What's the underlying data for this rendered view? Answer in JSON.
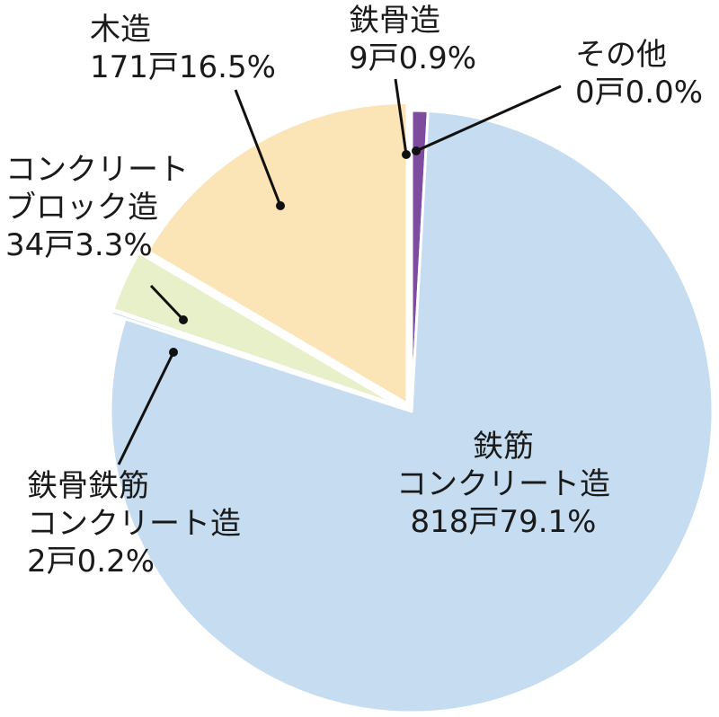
{
  "chart_data": {
    "type": "pie",
    "start_angle_deg": 0,
    "direction": "clockwise",
    "slices": [
      {
        "id": "tekkotsu",
        "lines": [
          "鉄骨造",
          "9戸0.9%"
        ],
        "units": 9,
        "percent": 0.9,
        "color": "#7d4c9e"
      },
      {
        "id": "sonota",
        "lines": [
          "その他",
          "0戸0.0%"
        ],
        "units": 0,
        "percent": 0.0,
        "color": "#7d4c9e"
      },
      {
        "id": "rc",
        "lines": [
          "鉄筋",
          "コンクリート造",
          "818戸79.1%"
        ],
        "units": 818,
        "percent": 79.1,
        "color": "#c5dcf1"
      },
      {
        "id": "src",
        "lines": [
          "鉄骨鉄筋",
          "コンクリート造",
          "2戸0.2%"
        ],
        "units": 2,
        "percent": 0.2,
        "color": "#c5dcf1"
      },
      {
        "id": "block",
        "lines": [
          "コンクリート",
          "ブロック造",
          "34戸3.3%"
        ],
        "units": 34,
        "percent": 3.3,
        "color": "#e8f0c9"
      },
      {
        "id": "mokuzo",
        "lines": [
          "木造",
          "171戸16.5%"
        ],
        "units": 171,
        "percent": 16.5,
        "color": "#fbe4b6"
      }
    ]
  }
}
